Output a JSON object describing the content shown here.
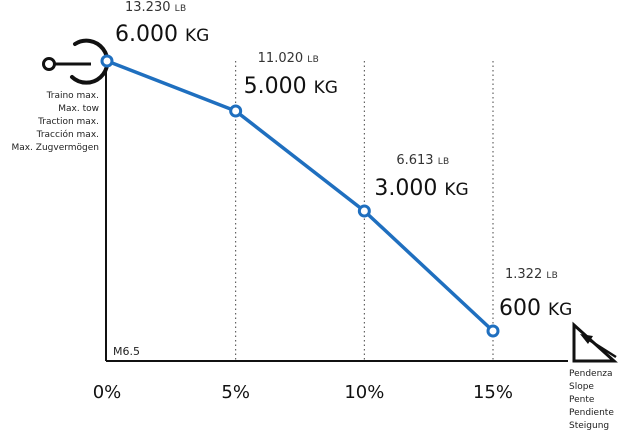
{
  "chart_data": {
    "type": "line",
    "x_label_texts": [
      "0%",
      "5%",
      "10%",
      "15%"
    ],
    "x": [
      0,
      5,
      10,
      15
    ],
    "values_kg": [
      6000,
      5000,
      3000,
      600
    ],
    "labels_kg": [
      "6.000",
      "5.000",
      "3.000",
      "600"
    ],
    "labels_lb": [
      "13.230",
      "11.020",
      "6.613",
      "1.322"
    ],
    "unit_kg": "KG",
    "unit_lb": "LB",
    "ylim": [
      0,
      6000
    ],
    "grid": "vertical dotted",
    "line_color": "#1f6fbf"
  },
  "y_axis_label_lines": [
    "Traino max.",
    "Max. tow",
    "Traction max.",
    "Tracción max.",
    "Max. Zugvermögen"
  ],
  "x_axis_label_lines": [
    "Pendenza",
    "Slope",
    "Pente",
    "Pendiente",
    "Steigung"
  ],
  "model": "M6.5",
  "icons": {
    "y_axis": "tow-hook-icon",
    "x_axis": "slope-triangle-icon"
  }
}
